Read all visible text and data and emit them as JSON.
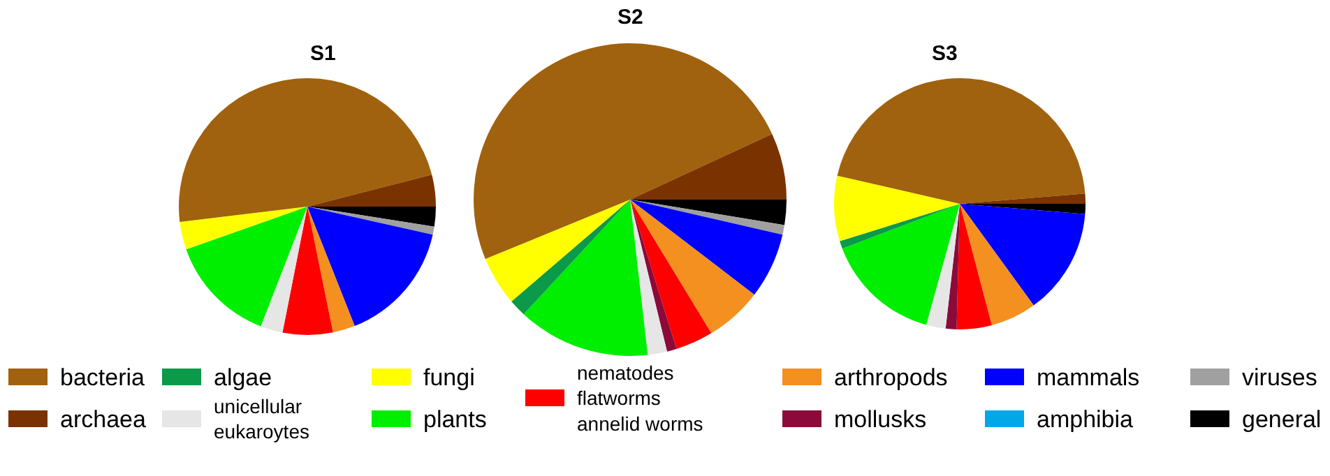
{
  "chart_data": {
    "type": "pie",
    "legend": "bottom",
    "categories": [
      "general",
      "viruses",
      "amphibia",
      "mammals",
      "arthropods",
      "nematodes\nflatworms\nannelid worms",
      "mollusks",
      "unicellular\neukaroytes",
      "plants",
      "algae",
      "fungi",
      "bacteria",
      "archaea"
    ],
    "colors": [
      "#000000",
      "#a0a0a0",
      "#00a8e8",
      "#0000ff",
      "#f39020",
      "#ff0000",
      "#8b0a3a",
      "#e6e6e6",
      "#00ee00",
      "#0a9a4a",
      "#ffff00",
      "#a0620e",
      "#7a3300"
    ],
    "series": [
      {
        "name": "S1",
        "values": [
          2.5,
          1,
          0,
          15.5,
          2.8,
          6.3,
          0,
          2.8,
          13.7,
          0,
          3.5,
          47.9,
          4
        ]
      },
      {
        "name": "S2",
        "values": [
          2.6,
          1,
          0,
          6.8,
          5.9,
          3.9,
          1,
          2,
          13.7,
          1.8,
          5.1,
          49.3,
          6.9
        ]
      },
      {
        "name": "S3",
        "values": [
          1.3,
          0,
          0,
          13.7,
          5.9,
          4.5,
          1.4,
          2.5,
          14.9,
          1,
          8.4,
          45.1,
          1.3
        ]
      }
    ]
  }
}
